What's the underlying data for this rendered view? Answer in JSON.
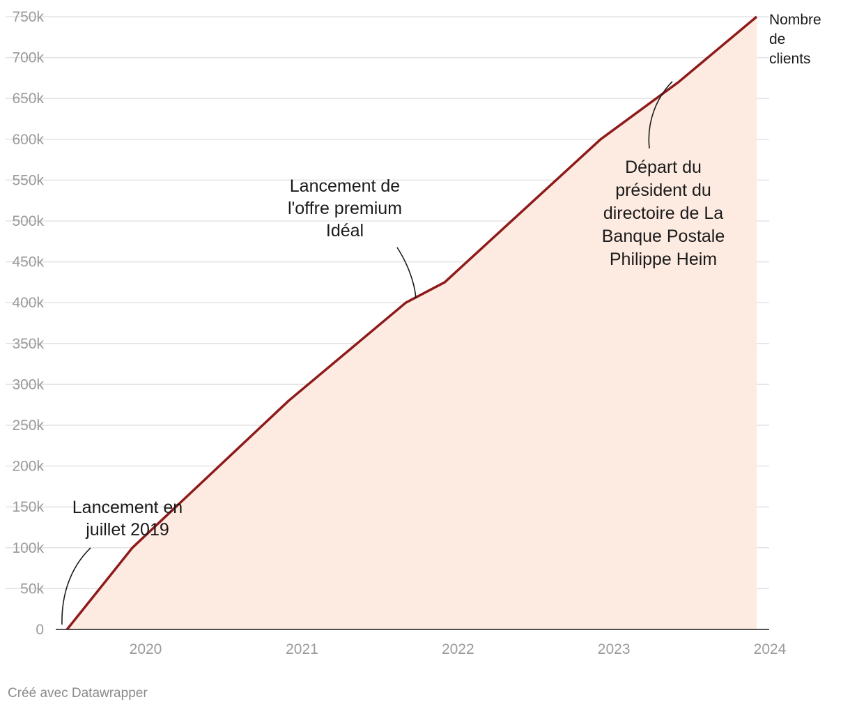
{
  "chart_data": {
    "type": "area",
    "title": "",
    "xlabel": "",
    "ylabel": "",
    "series": [
      {
        "name": "Nombre de clients",
        "x": [
          "2019-07-01",
          "2019-12-01",
          "2020-12-01",
          "2021-09-01",
          "2021-12-01",
          "2022-12-01",
          "2023-06-01",
          "2023-12-01"
        ],
        "values": [
          0,
          100000,
          280000,
          400000,
          425000,
          600000,
          670000,
          750000
        ]
      }
    ],
    "series_label_lines": [
      "Nombre",
      "de",
      "clients"
    ],
    "y_ticks": [
      0,
      50000,
      100000,
      150000,
      200000,
      250000,
      300000,
      350000,
      400000,
      450000,
      500000,
      550000,
      600000,
      650000,
      700000,
      750000
    ],
    "y_tick_labels": [
      "0",
      "50k",
      "100k",
      "150k",
      "200k",
      "250k",
      "300k",
      "350k",
      "400k",
      "450k",
      "500k",
      "550k",
      "600k",
      "650k",
      "700k",
      "750k"
    ],
    "x_ticks": [
      "2020",
      "2021",
      "2022",
      "2023",
      "2024"
    ],
    "ylim": [
      0,
      750000
    ],
    "xlim": [
      "2019-06-15",
      "2024-01-01"
    ],
    "grid": true,
    "annotations": [
      {
        "lines": [
          "Lancement en",
          "juillet 2019"
        ],
        "target": [
          "2019-07-01",
          0
        ]
      },
      {
        "lines": [
          "Lancement de",
          "l'offre premium",
          "Idéal"
        ],
        "target": [
          "2021-10-01",
          405000
        ]
      },
      {
        "lines": [
          "Départ du",
          "président du",
          "directoire de La",
          "Banque Postale",
          "Philippe Heim"
        ],
        "target": [
          "2023-06-01",
          670000
        ]
      }
    ],
    "colors": {
      "line": "#8e1b1b",
      "area": "#fdebe1",
      "grid": "#e3e3e3",
      "axis": "#1a1a1a"
    }
  },
  "footer": {
    "credit": "Créé avec Datawrapper"
  }
}
